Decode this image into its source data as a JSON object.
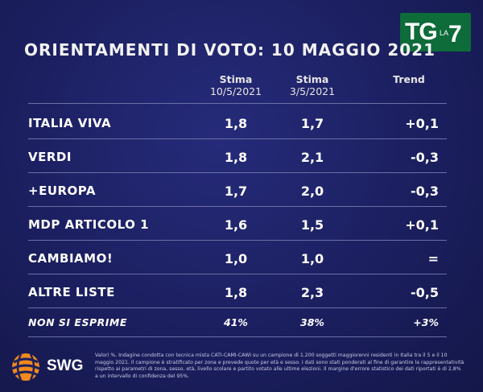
{
  "title": "ORIENTAMENTI DI VOTO: 10 MAGGIO 2021",
  "broadcaster": {
    "tg": "TG",
    "la": "LA",
    "seven": "7"
  },
  "columns": {
    "c1": {
      "head": "Stima",
      "sub": "10/5/2021"
    },
    "c2": {
      "head": "Stima",
      "sub": "3/5/2021"
    },
    "c3": {
      "head": "Trend"
    }
  },
  "rows": [
    {
      "label": "ITALIA VIVA",
      "v1": "1,8",
      "v2": "1,7",
      "trend": "+0,1"
    },
    {
      "label": "VERDI",
      "v1": "1,8",
      "v2": "2,1",
      "trend": "-0,3"
    },
    {
      "label": "+EUROPA",
      "v1": "1,7",
      "v2": "2,0",
      "trend": "-0,3"
    },
    {
      "label": "MDP ARTICOLO 1",
      "v1": "1,6",
      "v2": "1,5",
      "trend": "+0,1"
    },
    {
      "label": "CAMBIAMO!",
      "v1": "1,0",
      "v2": "1,0",
      "trend": "="
    },
    {
      "label": "ALTRE LISTE",
      "v1": "1,8",
      "v2": "2,3",
      "trend": "-0,5"
    }
  ],
  "non_si_esprime": {
    "label": "NON SI ESPRIME",
    "v1": "41%",
    "v2": "38%",
    "trend": "+3%"
  },
  "source": {
    "name": "SWG"
  },
  "note": "Valori %. Indagine condotta con tecnica mista CATI-CAMI-CAWI su un campione di 1.200 soggetti maggiorenni residenti in Italia tra il 5 e il 10 maggio 2021. Il campione è stratificato per zona e prevede quote per età e sesso. I dati sono stati ponderati al fine di garantire la rappresentatività rispetto ai parametri di zona, sesso, età, livello scolare e partito votato alle ultime elezioni. Il margine d'errore statistico dei dati riportati è di 2,8% a un intervallo di confidenza del 95%.",
  "colors": {
    "background": "#1b1f5f",
    "logo_green": "#0e6b3a",
    "swg_orange": "#f08a1c"
  }
}
